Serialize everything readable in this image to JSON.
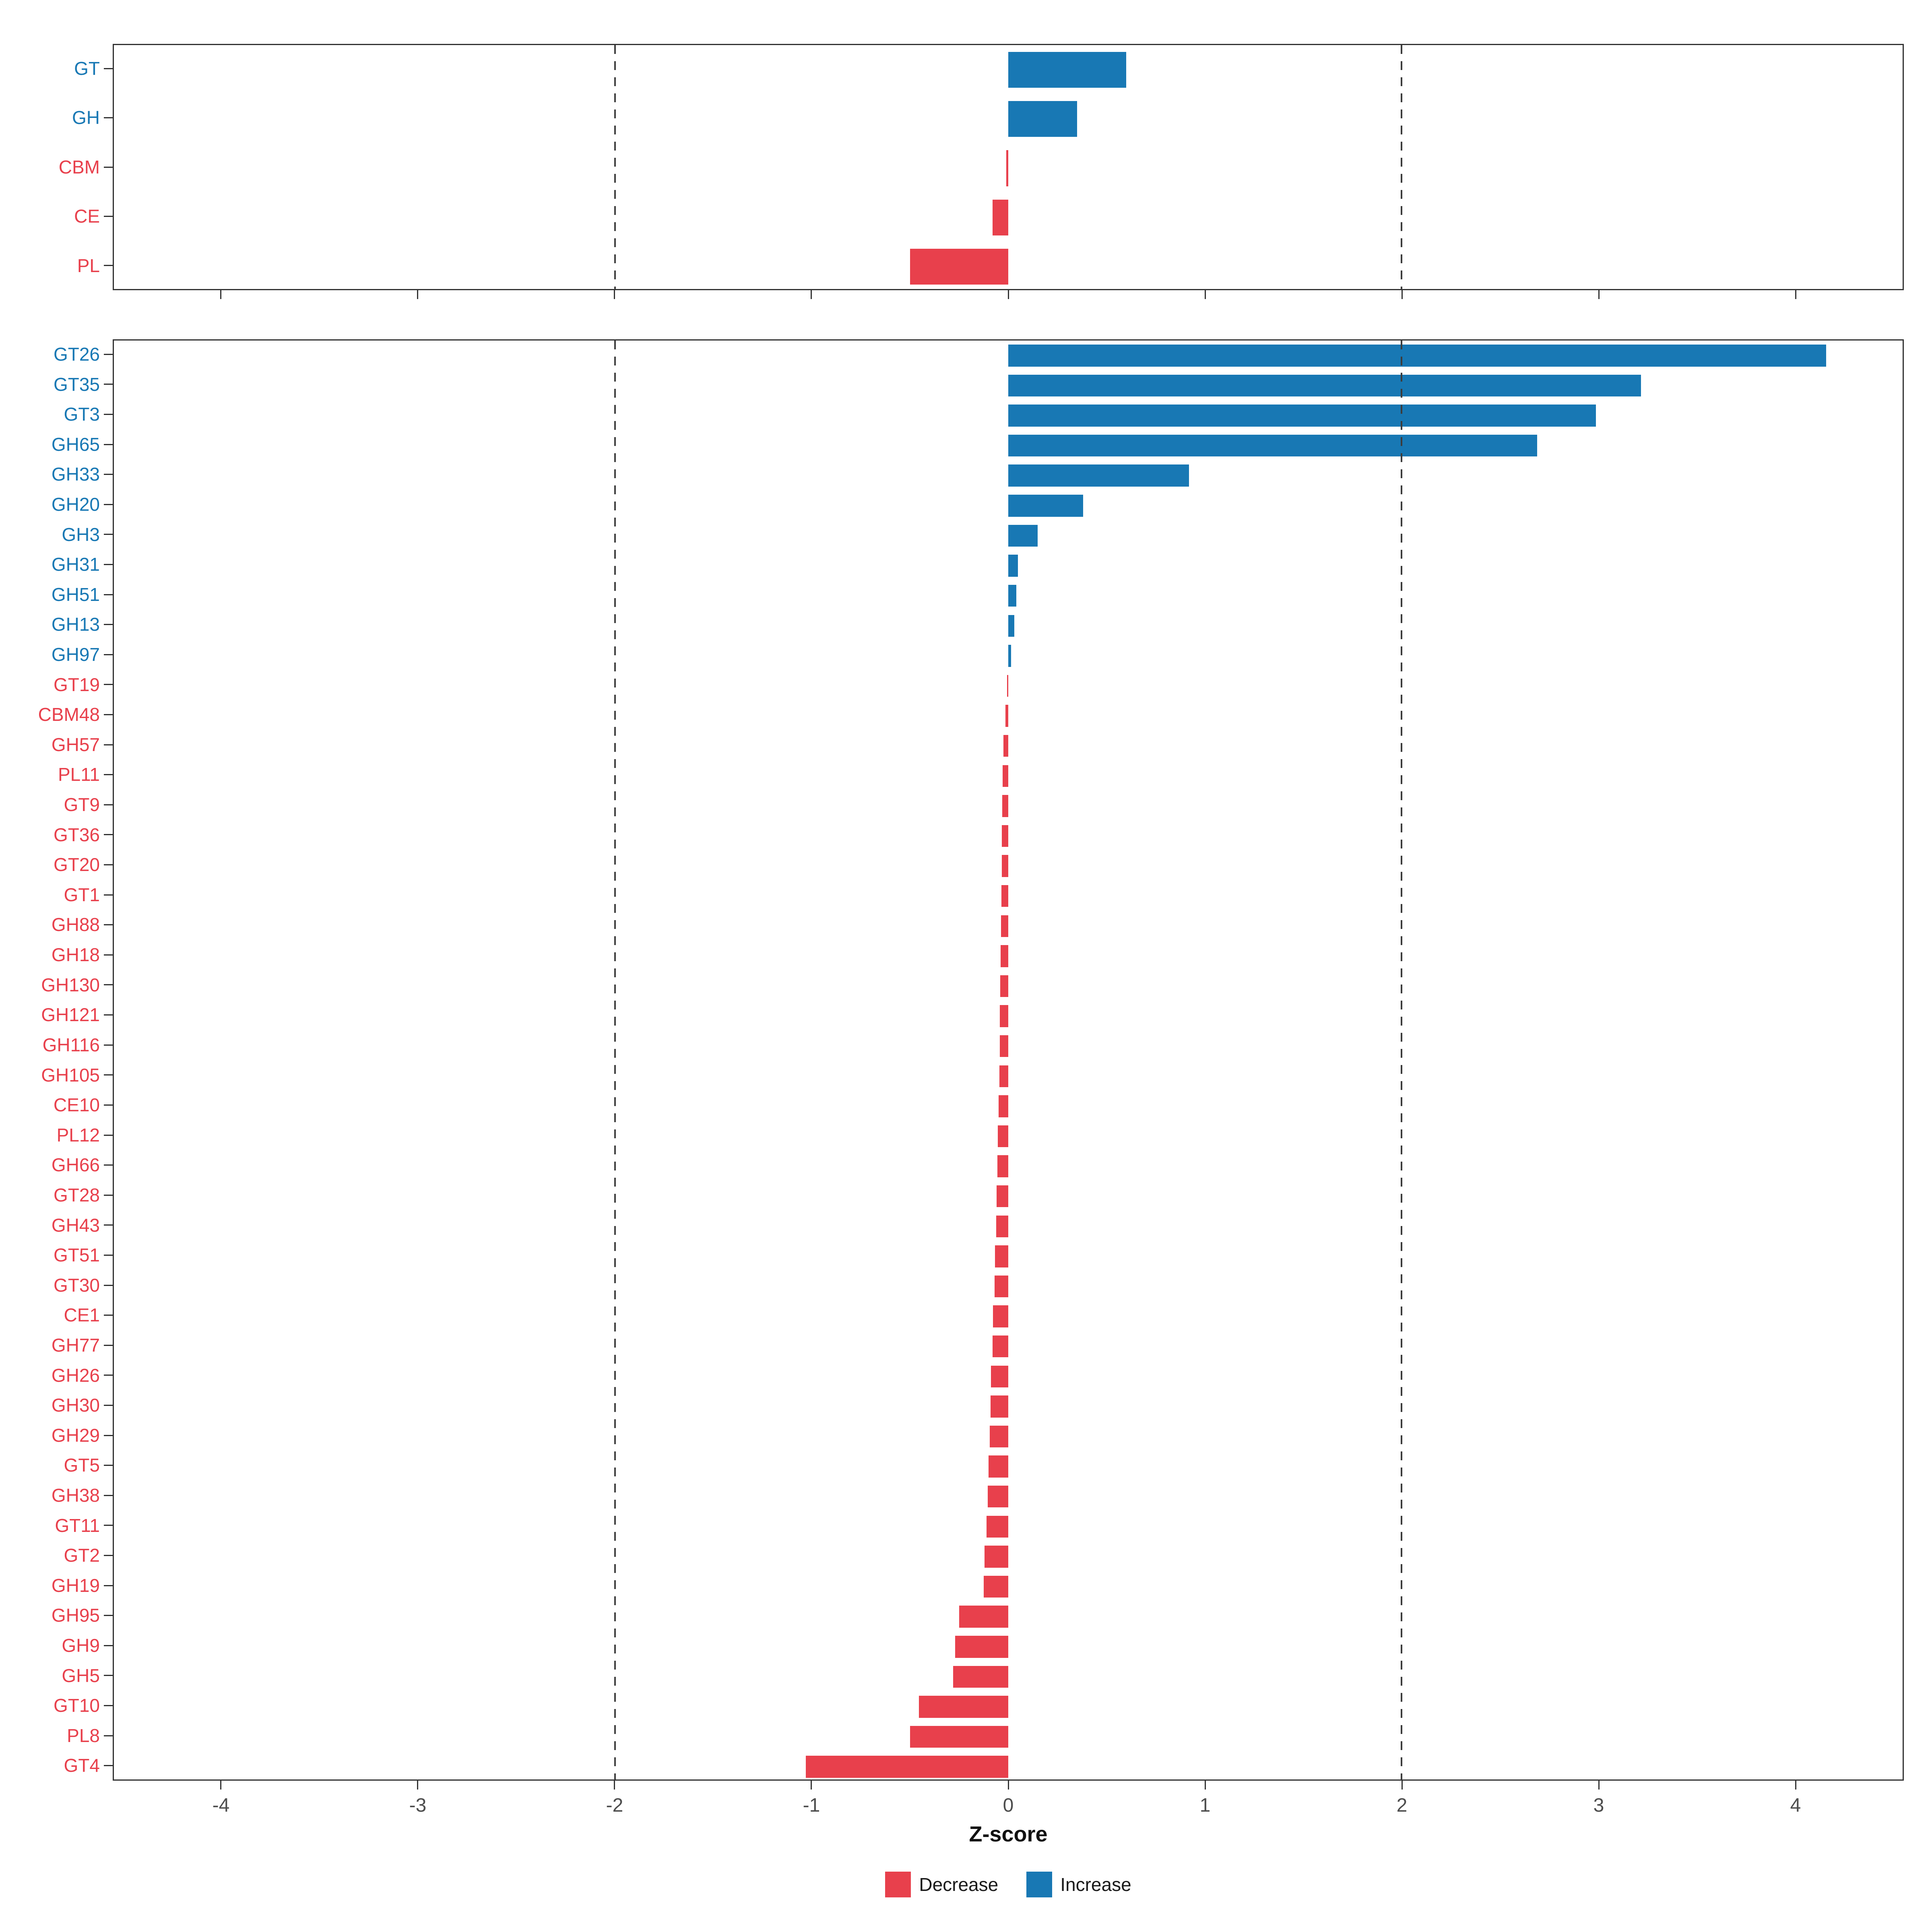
{
  "axis": {
    "xlabel": "Z-score",
    "tick_labels": [
      "-4",
      "-3",
      "-2",
      "-1",
      "0",
      "1",
      "2",
      "3",
      "4"
    ]
  },
  "colors": {
    "decrease": "#E8404C",
    "increase": "#1878B4",
    "vline": "#3C3C3C",
    "panel_border": "#333333",
    "axis_text": "#4D4D4D"
  },
  "legend": {
    "items": [
      {
        "label": "Decrease",
        "key": "decrease"
      },
      {
        "label": "Increase",
        "key": "increase"
      }
    ]
  },
  "chart_data": [
    {
      "type": "bar",
      "orientation": "horizontal",
      "panel": "cazyme-classes",
      "title": "",
      "xlabel": "Z-score",
      "xlim": [
        -4.55,
        4.55
      ],
      "xticks": [
        -4,
        -3,
        -2,
        -1,
        0,
        1,
        2,
        3,
        4
      ],
      "vlines": [
        -2,
        2
      ],
      "grid": false,
      "legend_position": "bottom",
      "categories": [
        "GT",
        "GH",
        "CBM",
        "CE",
        "PL"
      ],
      "values": [
        0.6,
        0.35,
        -0.01,
        -0.08,
        -0.5
      ],
      "directions": [
        "Increase",
        "Increase",
        "Decrease",
        "Decrease",
        "Decrease"
      ]
    },
    {
      "type": "bar",
      "orientation": "horizontal",
      "panel": "cazyme-families",
      "title": "",
      "xlabel": "Z-score",
      "xlim": [
        -4.55,
        4.55
      ],
      "xticks": [
        -4,
        -3,
        -2,
        -1,
        0,
        1,
        2,
        3,
        4
      ],
      "vlines": [
        -2,
        2
      ],
      "grid": false,
      "legend_position": "bottom",
      "categories": [
        "GT26",
        "GT35",
        "GT3",
        "GH65",
        "GH33",
        "GH20",
        "GH3",
        "GH31",
        "GH51",
        "GH13",
        "GH97",
        "GT19",
        "CBM48",
        "GH57",
        "PL11",
        "GT9",
        "GT36",
        "GT20",
        "GT1",
        "GH88",
        "GH18",
        "GH130",
        "GH121",
        "GH116",
        "GH105",
        "CE10",
        "PL12",
        "GH66",
        "GT28",
        "GH43",
        "GT51",
        "GT30",
        "CE1",
        "GH77",
        "GH26",
        "GH30",
        "GH29",
        "GT5",
        "GH38",
        "GT11",
        "GT2",
        "GH19",
        "GH95",
        "GH9",
        "GH5",
        "GT10",
        "PL8",
        "GT4"
      ],
      "values": [
        4.16,
        3.22,
        2.99,
        2.69,
        0.92,
        0.38,
        0.15,
        0.05,
        0.04,
        0.03,
        0.015,
        -0.006,
        -0.015,
        -0.025,
        -0.028,
        -0.03,
        -0.032,
        -0.033,
        -0.035,
        -0.037,
        -0.038,
        -0.04,
        -0.042,
        -0.044,
        -0.045,
        -0.05,
        -0.053,
        -0.055,
        -0.059,
        -0.062,
        -0.068,
        -0.07,
        -0.078,
        -0.08,
        -0.088,
        -0.09,
        -0.095,
        -0.1,
        -0.105,
        -0.11,
        -0.12,
        -0.125,
        -0.25,
        -0.27,
        -0.28,
        -0.455,
        -0.5,
        -1.03
      ],
      "directions": [
        "Increase",
        "Increase",
        "Increase",
        "Increase",
        "Increase",
        "Increase",
        "Increase",
        "Increase",
        "Increase",
        "Increase",
        "Increase",
        "Decrease",
        "Decrease",
        "Decrease",
        "Decrease",
        "Decrease",
        "Decrease",
        "Decrease",
        "Decrease",
        "Decrease",
        "Decrease",
        "Decrease",
        "Decrease",
        "Decrease",
        "Decrease",
        "Decrease",
        "Decrease",
        "Decrease",
        "Decrease",
        "Decrease",
        "Decrease",
        "Decrease",
        "Decrease",
        "Decrease",
        "Decrease",
        "Decrease",
        "Decrease",
        "Decrease",
        "Decrease",
        "Decrease",
        "Decrease",
        "Decrease",
        "Decrease",
        "Decrease",
        "Decrease",
        "Decrease",
        "Decrease",
        "Decrease"
      ]
    }
  ]
}
